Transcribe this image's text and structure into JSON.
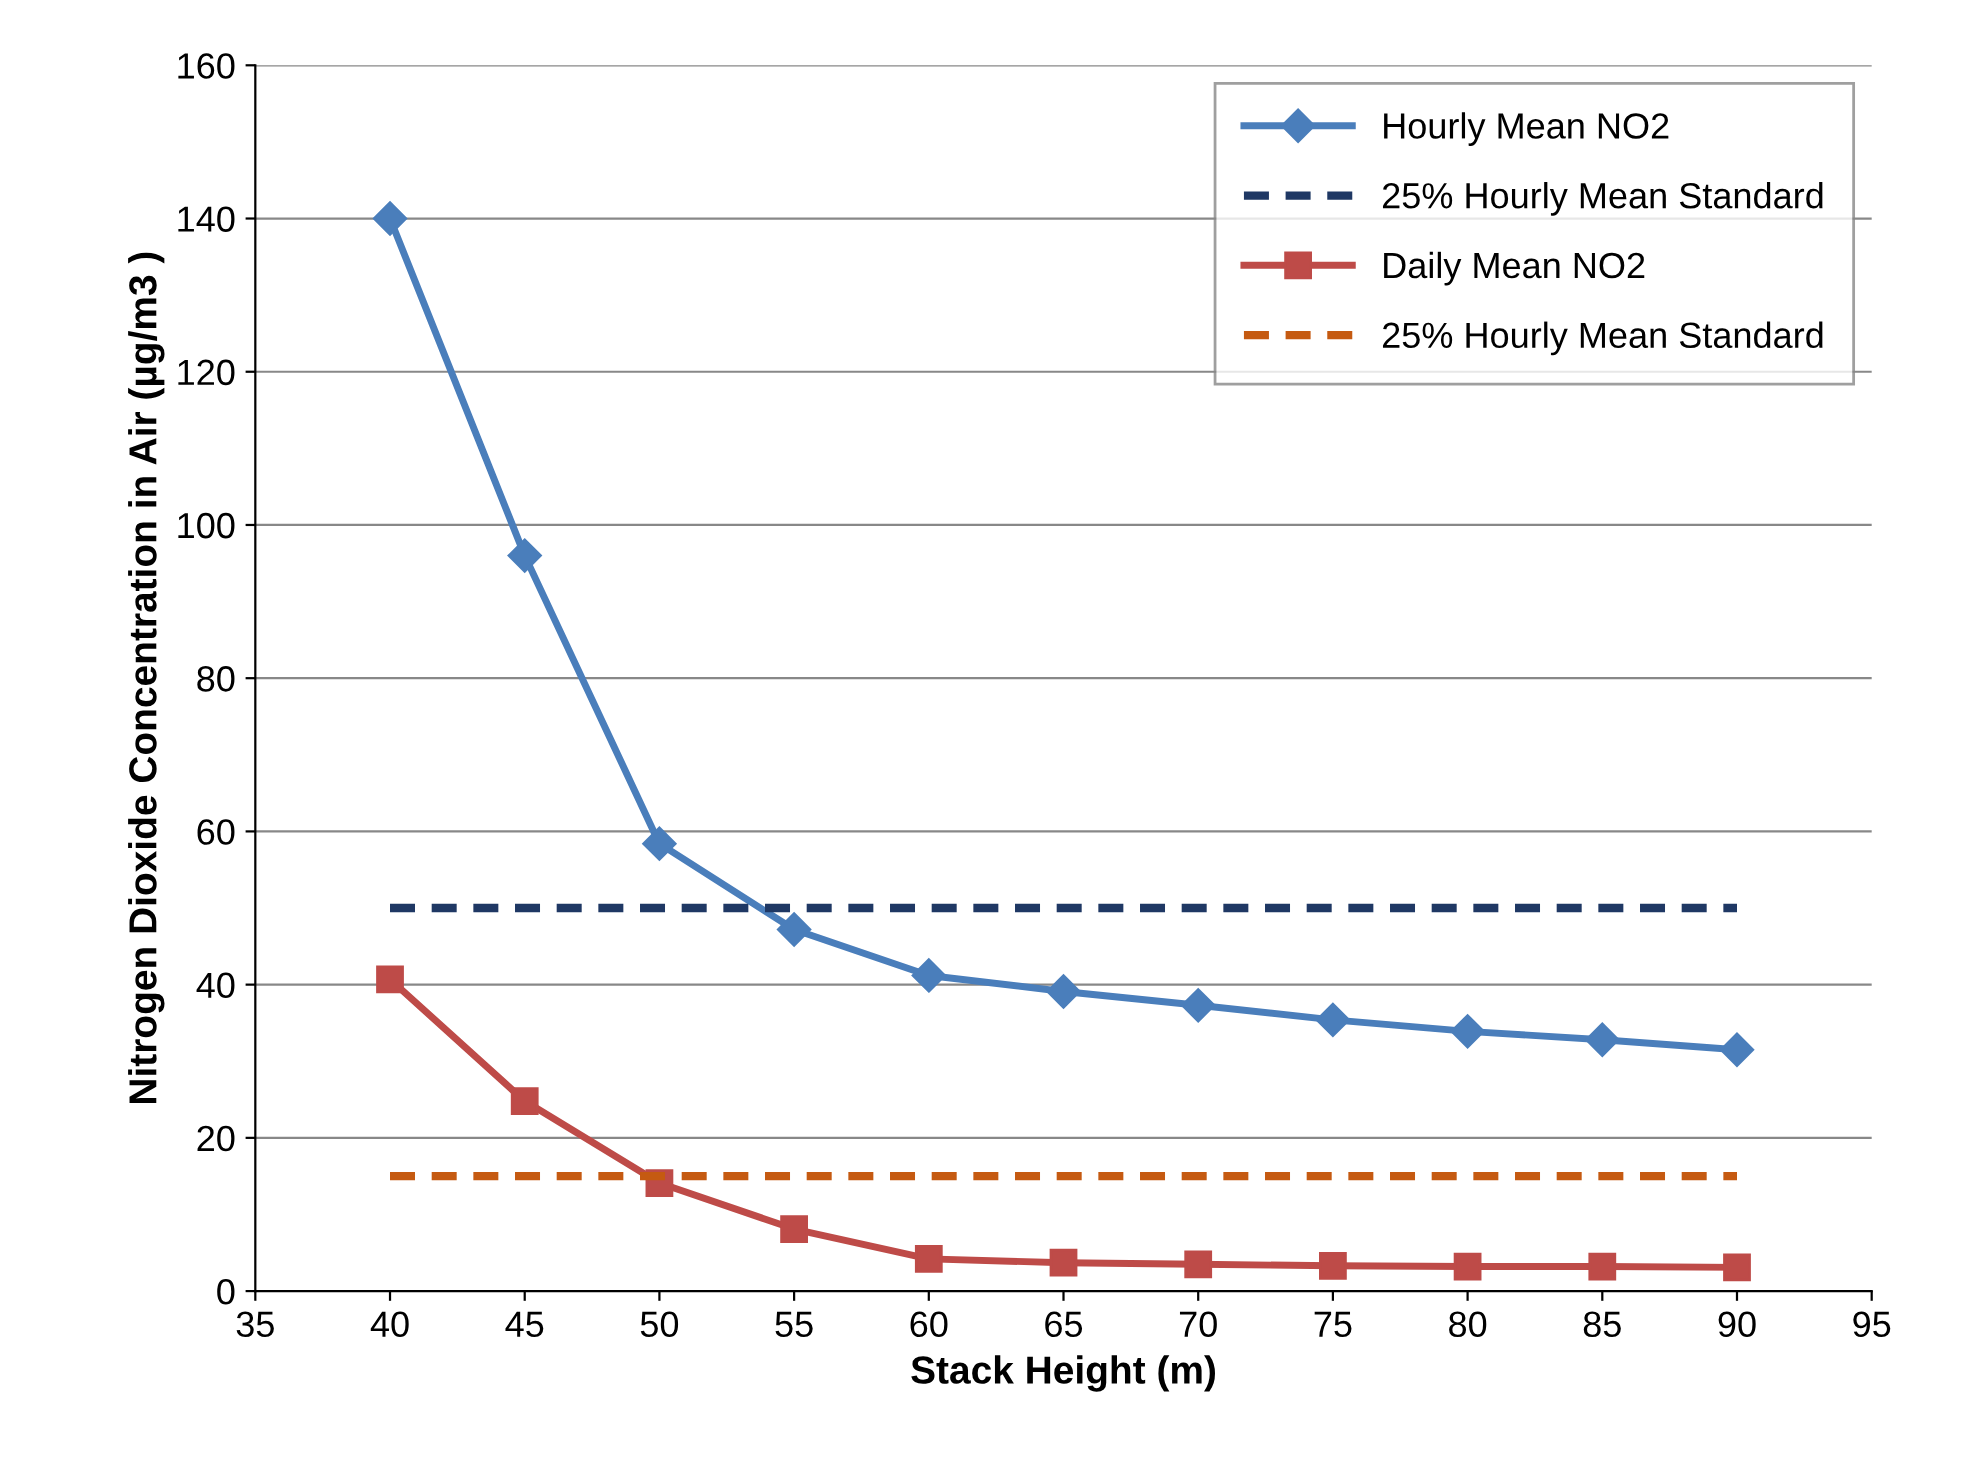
{
  "chart_data": {
    "type": "line",
    "xlabel": "Stack Height (m)",
    "ylabel": "Nitrogen Dioxide Concentration in Air (µg/m3 )",
    "x": [
      40,
      45,
      50,
      55,
      60,
      65,
      70,
      75,
      80,
      85,
      90
    ],
    "series": [
      {
        "name": "Hourly Mean NO2",
        "color": "#4a7ebb",
        "marker": "diamond",
        "line_style": "solid",
        "values": [
          140,
          96,
          58.4,
          47.2,
          41.2,
          39.1,
          37.3,
          35.4,
          33.9,
          32.8,
          31.5
        ]
      },
      {
        "name": "25% Hourly Mean Standard",
        "color": "#1f3864",
        "marker": "none",
        "line_style": "dashed",
        "values": [
          50,
          50,
          50,
          50,
          50,
          50,
          50,
          50,
          50,
          50,
          50
        ]
      },
      {
        "name": "Daily Mean NO2",
        "color": "#be4b48",
        "marker": "square",
        "line_style": "solid",
        "values": [
          40.7,
          24.8,
          14.1,
          8.1,
          4.2,
          3.7,
          3.5,
          3.3,
          3.2,
          3.2,
          3.1
        ]
      },
      {
        "name": "25% Hourly Mean Standard",
        "color": "#c55a11",
        "marker": "none",
        "line_style": "dashed",
        "values": [
          15,
          15,
          15,
          15,
          15,
          15,
          15,
          15,
          15,
          15,
          15
        ]
      }
    ],
    "xlim": [
      35,
      95
    ],
    "xticks": [
      35,
      40,
      45,
      50,
      55,
      60,
      65,
      70,
      75,
      80,
      85,
      90,
      95
    ],
    "ylim": [
      0,
      160
    ],
    "yticks": [
      0,
      20,
      40,
      60,
      80,
      100,
      120,
      140,
      160
    ],
    "grid": "y",
    "legend": "top right"
  }
}
